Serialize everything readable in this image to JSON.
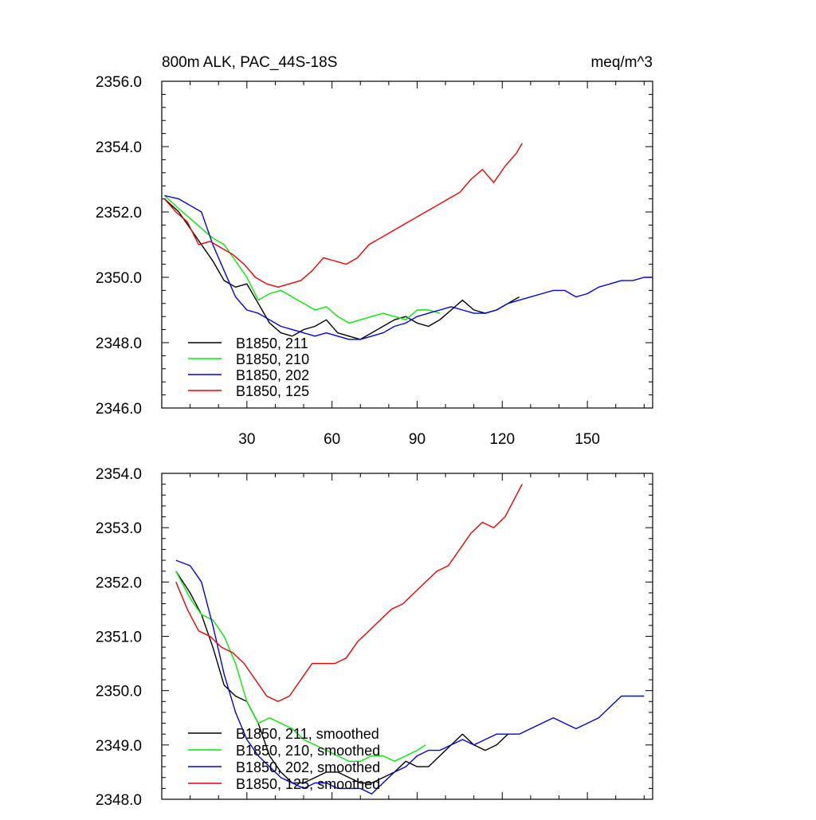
{
  "chart_data": [
    {
      "type": "line",
      "title": "800m ALK, PAC_44S-18S",
      "units": "meq/m^3",
      "xlim": [
        0,
        173
      ],
      "ylim": [
        2346,
        2356
      ],
      "x_ticks": [
        30,
        60,
        90,
        120,
        150
      ],
      "x_ticklabels": [
        "30",
        "60",
        "90",
        "120",
        "150"
      ],
      "y_ticks": [
        2346,
        2348,
        2350,
        2352,
        2354,
        2356
      ],
      "y_ticklabels": [
        "2346.0",
        "2348.0",
        "2350.0",
        "2352.0",
        "2354.0",
        "2356.0"
      ],
      "legend_position": "bottom-left",
      "series": [
        {
          "name": "B1850, 211",
          "color": "#000000",
          "x": [
            1,
            6,
            10,
            14,
            18,
            22,
            26,
            30,
            34,
            38,
            42,
            46,
            50,
            54,
            58,
            62,
            66,
            70,
            74,
            78,
            82,
            86,
            90,
            94,
            98,
            102,
            106,
            110,
            114,
            118,
            122,
            126
          ],
          "y": [
            2352.4,
            2352.0,
            2351.5,
            2351.0,
            2350.5,
            2349.9,
            2349.7,
            2349.8,
            2349.2,
            2348.6,
            2348.3,
            2348.2,
            2348.4,
            2348.5,
            2348.7,
            2348.3,
            2348.2,
            2348.1,
            2348.3,
            2348.5,
            2348.7,
            2348.8,
            2348.6,
            2348.5,
            2348.7,
            2349.0,
            2349.3,
            2349.0,
            2348.9,
            2349.0,
            2349.2,
            2349.4
          ]
        },
        {
          "name": "B1850, 210",
          "color": "#00ee00",
          "x": [
            1,
            6,
            10,
            14,
            18,
            22,
            26,
            30,
            34,
            38,
            42,
            46,
            50,
            54,
            58,
            62,
            66,
            70,
            74,
            78,
            82,
            86,
            90,
            94,
            98
          ],
          "y": [
            2352.5,
            2352.1,
            2351.8,
            2351.5,
            2351.2,
            2351.0,
            2350.5,
            2350.0,
            2349.3,
            2349.5,
            2349.6,
            2349.4,
            2349.2,
            2349.0,
            2349.1,
            2348.8,
            2348.6,
            2348.7,
            2348.8,
            2348.9,
            2348.8,
            2348.7,
            2349.0,
            2349.0,
            2348.9
          ]
        },
        {
          "name": "B1850, 202",
          "color": "#0000ee",
          "x": [
            1,
            6,
            10,
            14,
            18,
            22,
            26,
            30,
            34,
            38,
            42,
            46,
            50,
            54,
            58,
            62,
            66,
            70,
            74,
            78,
            82,
            86,
            90,
            94,
            98,
            102,
            106,
            110,
            114,
            118,
            122,
            126,
            130,
            134,
            138,
            142,
            146,
            150,
            154,
            158,
            162,
            166,
            170,
            173
          ],
          "y": [
            2352.5,
            2352.4,
            2352.2,
            2352.0,
            2351.0,
            2350.2,
            2349.4,
            2349.0,
            2348.9,
            2348.7,
            2348.5,
            2348.4,
            2348.3,
            2348.2,
            2348.3,
            2348.2,
            2348.1,
            2348.1,
            2348.2,
            2348.3,
            2348.5,
            2348.6,
            2348.8,
            2348.9,
            2349.0,
            2349.1,
            2349.0,
            2348.9,
            2348.9,
            2349.0,
            2349.2,
            2349.3,
            2349.4,
            2349.5,
            2349.6,
            2349.6,
            2349.4,
            2349.5,
            2349.7,
            2349.8,
            2349.9,
            2349.9,
            2350.0,
            2350.0
          ]
        },
        {
          "name": "B1850, 125",
          "color": "#ee0000",
          "x": [
            1,
            5,
            9,
            13,
            17,
            21,
            25,
            29,
            33,
            37,
            41,
            45,
            49,
            53,
            57,
            61,
            65,
            69,
            73,
            77,
            81,
            85,
            89,
            93,
            97,
            101,
            105,
            109,
            113,
            117,
            121,
            125,
            127
          ],
          "y": [
            2352.4,
            2352.0,
            2351.7,
            2351.0,
            2351.1,
            2350.9,
            2350.7,
            2350.4,
            2350.0,
            2349.8,
            2349.7,
            2349.8,
            2349.9,
            2350.2,
            2350.6,
            2350.5,
            2350.4,
            2350.6,
            2351.0,
            2351.2,
            2351.4,
            2351.6,
            2351.8,
            2352.0,
            2352.2,
            2352.4,
            2352.6,
            2353.0,
            2353.3,
            2352.9,
            2353.4,
            2353.8,
            2354.1
          ]
        }
      ]
    },
    {
      "type": "line",
      "title": "",
      "xlim": [
        0,
        173
      ],
      "ylim": [
        2348,
        2354
      ],
      "x_ticks": [
        30,
        60,
        90,
        120,
        150
      ],
      "y_ticks": [
        2348,
        2349,
        2350,
        2351,
        2352,
        2353,
        2354
      ],
      "y_ticklabels": [
        "2348.0",
        "2349.0",
        "2350.0",
        "2351.0",
        "2352.0",
        "2353.0",
        "2354.0"
      ],
      "legend_position": "bottom-left",
      "series": [
        {
          "name": "B1850, 211, smoothed",
          "color": "#000000",
          "x": [
            5,
            10,
            14,
            18,
            22,
            26,
            30,
            34,
            38,
            42,
            46,
            50,
            54,
            58,
            62,
            66,
            70,
            74,
            78,
            82,
            86,
            90,
            94,
            98,
            102,
            106,
            110,
            114,
            118,
            122
          ],
          "y": [
            2352.2,
            2351.8,
            2351.4,
            2350.8,
            2350.1,
            2349.9,
            2349.8,
            2349.4,
            2348.8,
            2348.5,
            2348.3,
            2348.3,
            2348.4,
            2348.5,
            2348.5,
            2348.4,
            2348.3,
            2348.3,
            2348.4,
            2348.5,
            2348.7,
            2348.6,
            2348.6,
            2348.8,
            2349.0,
            2349.2,
            2349.0,
            2348.9,
            2349.0,
            2349.2
          ]
        },
        {
          "name": "B1850, 210, smoothed",
          "color": "#00ee00",
          "x": [
            5,
            10,
            14,
            18,
            22,
            26,
            30,
            34,
            38,
            42,
            46,
            50,
            54,
            58,
            62,
            66,
            70,
            74,
            78,
            82,
            86,
            90,
            93
          ],
          "y": [
            2352.2,
            2351.7,
            2351.4,
            2351.3,
            2351.0,
            2350.5,
            2349.8,
            2349.4,
            2349.5,
            2349.4,
            2349.3,
            2349.1,
            2349.0,
            2348.9,
            2348.8,
            2348.7,
            2348.7,
            2348.8,
            2348.8,
            2348.7,
            2348.8,
            2348.9,
            2349.0
          ]
        },
        {
          "name": "B1850, 202, smoothed",
          "color": "#0000ee",
          "x": [
            5,
            10,
            14,
            18,
            22,
            26,
            30,
            34,
            38,
            42,
            46,
            50,
            54,
            58,
            62,
            66,
            70,
            74,
            78,
            82,
            86,
            90,
            94,
            98,
            102,
            106,
            110,
            114,
            118,
            122,
            126,
            130,
            134,
            138,
            142,
            146,
            150,
            154,
            158,
            162,
            166,
            170
          ],
          "y": [
            2352.4,
            2352.3,
            2352.0,
            2351.2,
            2350.3,
            2349.6,
            2349.1,
            2348.8,
            2348.6,
            2348.4,
            2348.3,
            2348.2,
            2348.3,
            2348.3,
            2348.2,
            2348.2,
            2348.2,
            2348.1,
            2348.3,
            2348.5,
            2348.6,
            2348.8,
            2348.9,
            2348.9,
            2349.0,
            2349.1,
            2349.0,
            2349.1,
            2349.2,
            2349.2,
            2349.2,
            2349.3,
            2349.4,
            2349.5,
            2349.4,
            2349.3,
            2349.4,
            2349.5,
            2349.7,
            2349.9,
            2349.9,
            2349.9
          ]
        },
        {
          "name": "B1850, 125, smoothed",
          "color": "#ee0000",
          "x": [
            5,
            9,
            13,
            17,
            21,
            25,
            29,
            33,
            37,
            41,
            45,
            49,
            53,
            57,
            61,
            65,
            69,
            73,
            77,
            81,
            85,
            89,
            93,
            97,
            101,
            105,
            109,
            113,
            117,
            121,
            125,
            127
          ],
          "y": [
            2352.0,
            2351.5,
            2351.1,
            2351.0,
            2350.8,
            2350.7,
            2350.5,
            2350.2,
            2349.9,
            2349.8,
            2349.9,
            2350.2,
            2350.5,
            2350.5,
            2350.5,
            2350.6,
            2350.9,
            2351.1,
            2351.3,
            2351.5,
            2351.6,
            2351.8,
            2352.0,
            2352.2,
            2352.3,
            2352.6,
            2352.9,
            2353.1,
            2353.0,
            2353.2,
            2353.6,
            2353.8
          ]
        }
      ]
    }
  ]
}
